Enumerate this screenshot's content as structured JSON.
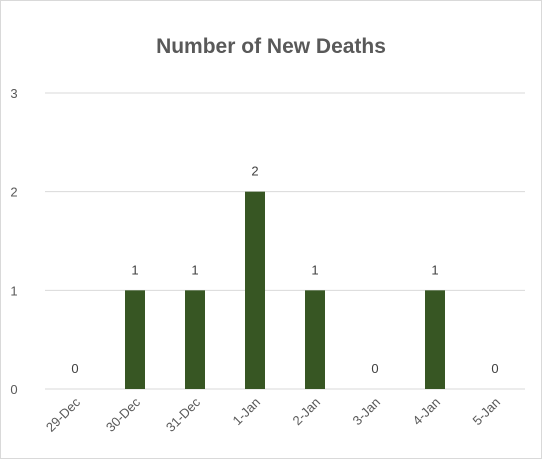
{
  "chart_data": {
    "type": "bar",
    "title": "Number of New Deaths",
    "categories": [
      "29-Dec",
      "30-Dec",
      "31-Dec",
      "1-Jan",
      "2-Jan",
      "3-Jan",
      "4-Jan",
      "5-Jan"
    ],
    "values": [
      0,
      1,
      1,
      2,
      1,
      0,
      1,
      0
    ],
    "ylim": [
      0,
      3
    ],
    "yticks": [
      0,
      1,
      2,
      3
    ],
    "grid": true,
    "legend": "none",
    "bar_color": "#375623",
    "grid_color": "#d9d9d9",
    "text_color": "#595959"
  }
}
